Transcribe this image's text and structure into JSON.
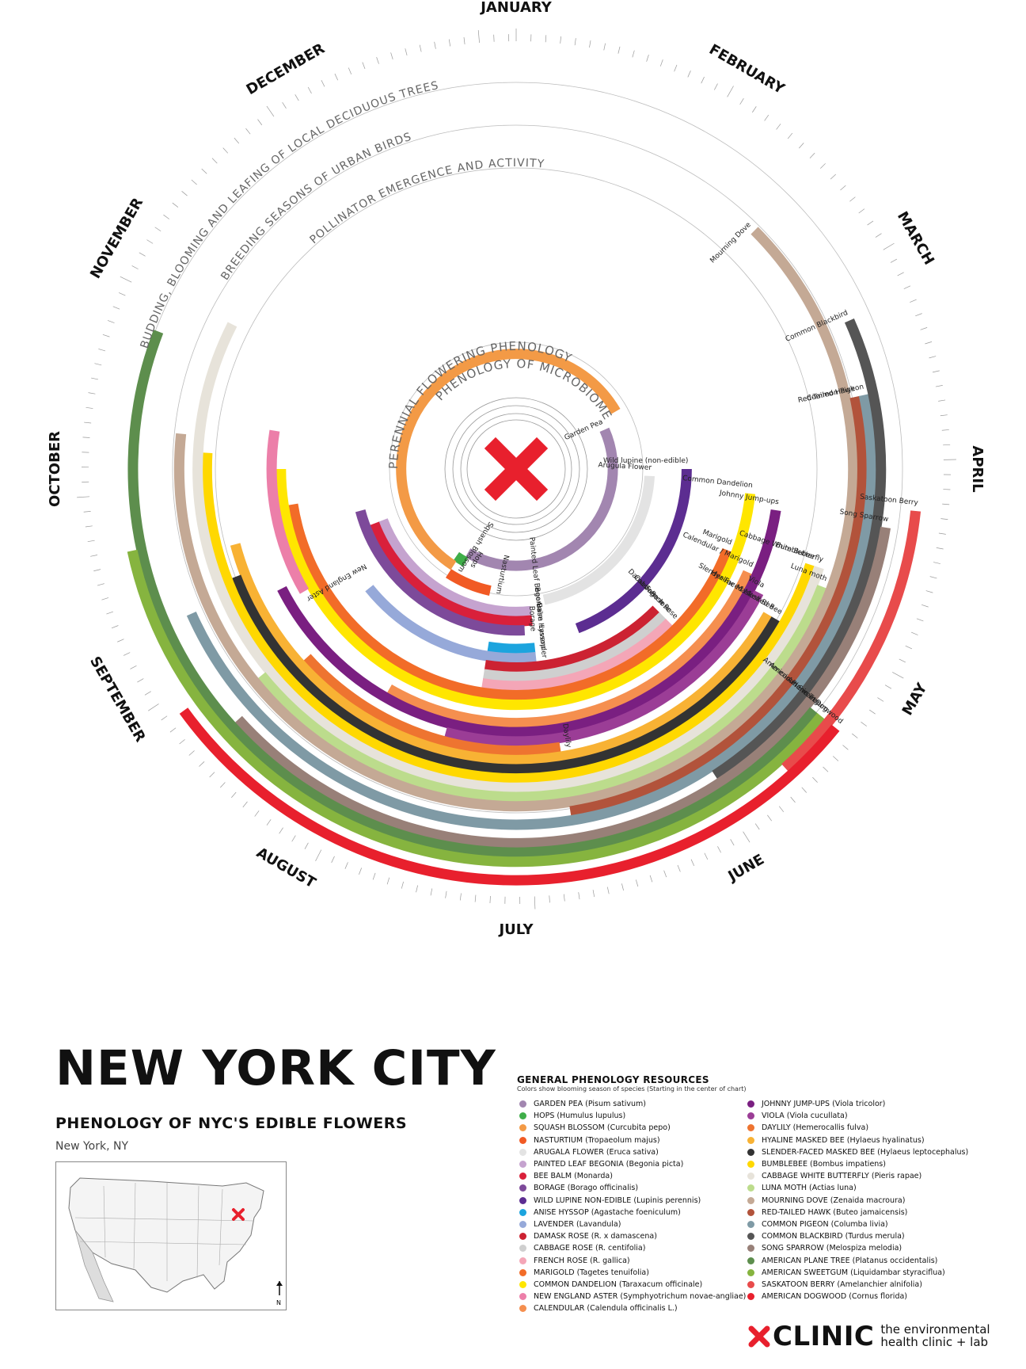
{
  "header": {
    "title": "NEW YORK CITY",
    "subtitle": "PHENOLOGY OF NYC'S EDIBLE FLOWERS",
    "location": "New York, NY"
  },
  "chart_data": {
    "type": "radial-timeline",
    "months": [
      "JANUARY",
      "FEBRUARY",
      "MARCH",
      "APRIL",
      "MAY",
      "JUNE",
      "JULY",
      "AUGUST",
      "SEPTEMBER",
      "OCTOBER",
      "NOVEMBER",
      "DECEMBER"
    ],
    "ring_labels": [
      "PHENOLOGY OF MICROBIOME",
      "PERENNIAL FLOWERING PHENOLOGY",
      "POLLINATOR EMERGENCE AND ACTIVITY",
      "BREEDING SEASONS OF URBAN BIRDS",
      "BUDDING, BLOOMING AND LEAFING OF LOCAL DECIDUOUS TREES"
    ],
    "series": [
      {
        "name": "Garden Pea",
        "color": "#a286b0",
        "start": 2.2,
        "end": 7.0
      },
      {
        "name": "Hops",
        "color": "#3fae49",
        "start": 6.95,
        "end": 7.15
      },
      {
        "name": "Squash Blossom",
        "color": "#f39a46",
        "start": 7.1,
        "end": 2.0
      },
      {
        "name": "Nasturtium",
        "color": "#f15a24",
        "start": 6.4,
        "end": 7.1
      },
      {
        "name": "Arugula Flower",
        "color": "#e3e3e3",
        "start": 3.1,
        "end": 5.6
      },
      {
        "name": "Painted Leaf Begonia",
        "color": "#c5a3cf",
        "start": 5.8,
        "end": 8.3
      },
      {
        "name": "Bee Balm",
        "color": "#d9203b",
        "start": 5.8,
        "end": 8.3
      },
      {
        "name": "Borage",
        "color": "#7d4a9a",
        "start": 5.9,
        "end": 8.5
      },
      {
        "name": "Wild lupine (non-edible)",
        "color": "#5c2d91",
        "start": 3.0,
        "end": 5.3
      },
      {
        "name": "Anise Hyssop",
        "color": "#1ca4de",
        "start": 5.8,
        "end": 6.3
      },
      {
        "name": "Lavender",
        "color": "#96a9d9",
        "start": 5.8,
        "end": 7.7
      },
      {
        "name": "Damask Rose",
        "color": "#cc2232",
        "start": 4.5,
        "end": 6.3
      },
      {
        "name": "Cabbage rose",
        "color": "#cfcfcf",
        "start": 4.5,
        "end": 6.3
      },
      {
        "name": "French Rose",
        "color": "#f4a6b7",
        "start": 4.5,
        "end": 6.3
      },
      {
        "name": "Marigold",
        "color": "#f26c28",
        "start": 3.7,
        "end": 8.7
      },
      {
        "name": "Common Dandelion",
        "color": "#ffe600",
        "start": 3.2,
        "end": 9.0
      },
      {
        "name": "New England Aster",
        "color": "#ec7fa9",
        "start": 8.0,
        "end": 9.3
      },
      {
        "name": "Calendular / Marigold",
        "color": "#f58f4f",
        "start": 3.8,
        "end": 7.0
      },
      {
        "name": "Johnny Jump-ups",
        "color": "#7a1f81",
        "start": 3.3,
        "end": 8.1
      },
      {
        "name": "Viola",
        "color": "#9b3d96",
        "start": 3.9,
        "end": 6.5
      },
      {
        "name": "Daylily",
        "color": "#ee7430",
        "start": 5.7,
        "end": 7.6
      },
      {
        "name": "Hyaline Masked Bee",
        "color": "#f8b234",
        "start": 4.0,
        "end": 8.5
      },
      {
        "name": "Slender-Faced Masked Bee",
        "color": "#333333",
        "start": 4.0,
        "end": 8.3
      },
      {
        "name": "Bumblebee",
        "color": "#ffd800",
        "start": 3.6,
        "end": 9.1
      },
      {
        "name": "Cabbage White Butterfly",
        "color": "#e7e3da",
        "start": 3.6,
        "end": 9.9
      },
      {
        "name": "Luna moth",
        "color": "#bcdc8c",
        "start": 3.7,
        "end": 7.7
      },
      {
        "name": "Mourning Dove",
        "color": "#c4a995",
        "start": 1.5,
        "end": 9.2
      },
      {
        "name": "Red-Tailed Hawk",
        "color": "#b2533b",
        "start": 2.6,
        "end": 5.7
      },
      {
        "name": "Common Pigeon",
        "color": "#7f9aa5",
        "start": 2.6,
        "end": 8.2
      },
      {
        "name": "Common Blackbird",
        "color": "#555555",
        "start": 2.2,
        "end": 4.9
      },
      {
        "name": "Song Sparrow",
        "color": "#988078",
        "start": 3.3,
        "end": 7.6
      },
      {
        "name": "American Plane Tree",
        "color": "#5d8e4d",
        "start": 4.3,
        "end": 9.7
      },
      {
        "name": "American Sweetgum",
        "color": "#86b43f",
        "start": 4.3,
        "end": 8.6
      },
      {
        "name": "Saskatoon Berry",
        "color": "#e84b4b",
        "start": 3.2,
        "end": 4.6
      },
      {
        "name": "American Dogwood",
        "color": "#e8202d",
        "start": 4.3,
        "end": 7.8
      }
    ]
  },
  "legend": {
    "heading": "GENERAL PHENOLOGY RESOURCES",
    "note": "Colors show blooming season of species (Starting in the center of chart)",
    "col1": [
      {
        "label": "GARDEN PEA (Pisum sativum)",
        "color": "#a286b0"
      },
      {
        "label": "HOPS (Humulus lupulus)",
        "color": "#3fae49"
      },
      {
        "label": "SQUASH BLOSSOM (Curcubita pepo)",
        "color": "#f39a46"
      },
      {
        "label": "NASTURTIUM (Tropaeolum majus)",
        "color": "#f15a24"
      },
      {
        "label": "ARUGALA FLOWER (Eruca sativa)",
        "color": "#e3e3e3"
      },
      {
        "label": "PAINTED LEAF BEGONIA (Begonia picta)",
        "color": "#c5a3cf"
      },
      {
        "label": "BEE BALM (Monarda)",
        "color": "#d9203b"
      },
      {
        "label": "BORAGE (Borago officinalis)",
        "color": "#7d4a9a"
      },
      {
        "label": "WILD LUPINE NON-EDIBLE (Lupinis perennis)",
        "color": "#5c2d91"
      },
      {
        "label": "ANISE HYSSOP (Agastache foeniculum)",
        "color": "#1ca4de"
      },
      {
        "label": "LAVENDER (Lavandula)",
        "color": "#96a9d9"
      },
      {
        "label": "DAMASK ROSE (R. x damascena)",
        "color": "#cc2232"
      },
      {
        "label": "CABBAGE ROSE (R. centifolia)",
        "color": "#cfcfcf"
      },
      {
        "label": "FRENCH ROSE (R. gallica)",
        "color": "#f4a6b7"
      },
      {
        "label": "MARIGOLD (Tagetes tenuifolia)",
        "color": "#f26c28"
      },
      {
        "label": "COMMON DANDELION (Taraxacum officinale)",
        "color": "#ffe600"
      },
      {
        "label": "NEW ENGLAND ASTER (Symphyotrichum novae-angliae)",
        "color": "#ec7fa9"
      },
      {
        "label": "CALENDULAR (Calendula officinalis L.)",
        "color": "#f58f4f"
      }
    ],
    "col2": [
      {
        "label": "JOHNNY JUMP-UPS (Viola tricolor)",
        "color": "#7a1f81"
      },
      {
        "label": "VIOLA (Viola cucullata)",
        "color": "#9b3d96"
      },
      {
        "label": "DAYLILY (Hemerocallis fulva)",
        "color": "#ee7430"
      },
      {
        "label": "HYALINE MASKED BEE (Hylaeus hyalinatus)",
        "color": "#f8b234"
      },
      {
        "label": "SLENDER-FACED MASKED BEE (Hylaeus leptocephalus)",
        "color": "#333333"
      },
      {
        "label": "BUMBLEBEE (Bombus impatiens)",
        "color": "#ffd800"
      },
      {
        "label": "CABBAGE WHITE BUTTERFLY (Pieris rapae)",
        "color": "#e7e3da"
      },
      {
        "label": "LUNA MOTH (Actias luna)",
        "color": "#bcdc8c"
      },
      {
        "label": "MOURNING DOVE (Zenaida macroura)",
        "color": "#c4a995"
      },
      {
        "label": "RED-TAILED HAWK (Buteo jamaicensis)",
        "color": "#b2533b"
      },
      {
        "label": "COMMON PIGEON (Columba livia)",
        "color": "#7f9aa5"
      },
      {
        "label": "COMMON BLACKBIRD (Turdus merula)",
        "color": "#555555"
      },
      {
        "label": "SONG SPARROW (Melospiza melodia)",
        "color": "#988078"
      },
      {
        "label": "AMERICAN PLANE TREE (Platanus occidentalis)",
        "color": "#5d8e4d"
      },
      {
        "label": "AMERICAN SWEETGUM (Liquidambar styraciflua)",
        "color": "#86b43f"
      },
      {
        "label": "SASKATOON BERRY (Amelanchier alnifolia)",
        "color": "#e84b4b"
      },
      {
        "label": "AMERICAN DOGWOOD (Cornus florida)",
        "color": "#e8202d"
      }
    ]
  },
  "map": {
    "compass": "N"
  },
  "logo": {
    "word": "CLINIC",
    "tagline_1": "the environmental",
    "tagline_2": "health clinic + lab"
  },
  "colors": {
    "accent": "#e8202d"
  }
}
